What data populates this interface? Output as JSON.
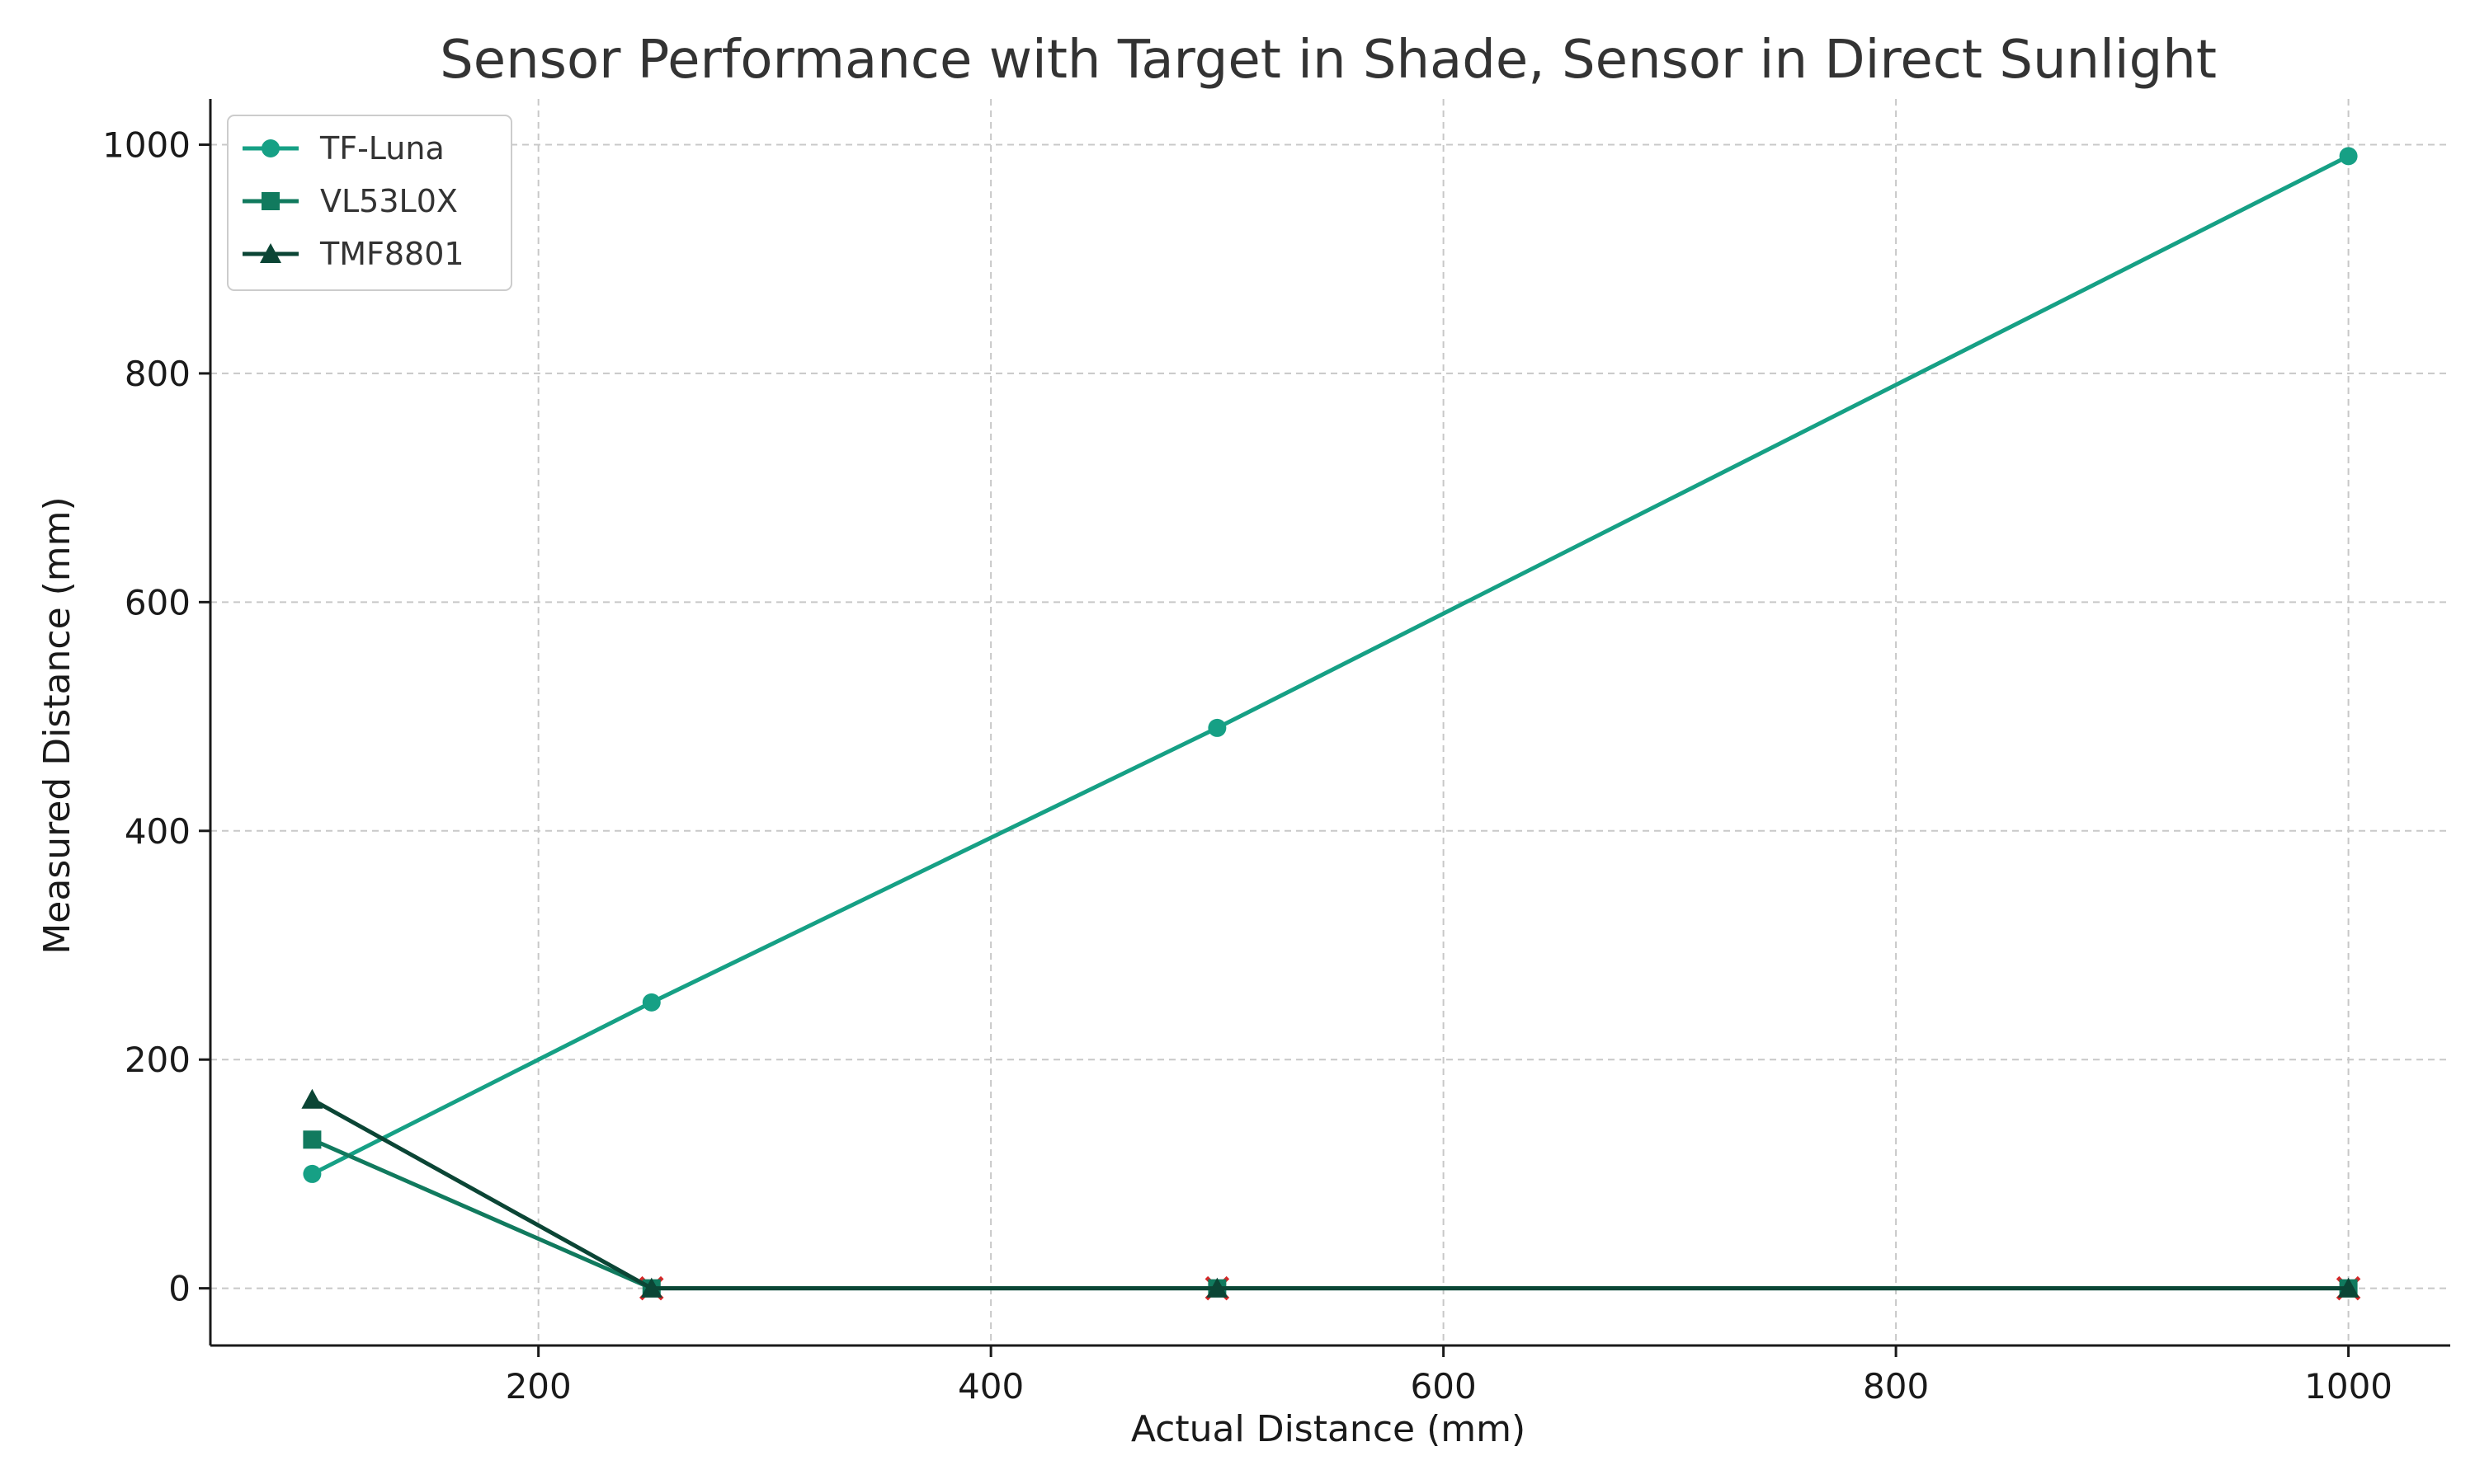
{
  "chart_data": {
    "type": "line",
    "title": "Sensor Performance with Target in Shade, Sensor in Direct Sunlight",
    "xlabel": "Actual Distance (mm)",
    "ylabel": "Measured Distance (mm)",
    "xlim": [
      55,
      1045
    ],
    "ylim": [
      -50,
      1040
    ],
    "xticks": [
      200,
      400,
      600,
      800,
      1000
    ],
    "yticks": [
      0,
      200,
      400,
      600,
      800,
      1000
    ],
    "grid": true,
    "legend_position": "top-left",
    "x": [
      100,
      250,
      500,
      1000
    ],
    "series": [
      {
        "name": "TF-Luna",
        "marker": "circle",
        "color": "#16a085",
        "values": [
          100,
          250,
          490,
          990
        ]
      },
      {
        "name": "VL53L0X",
        "marker": "square",
        "color": "#117a5e",
        "values": [
          130,
          0,
          0,
          0
        ]
      },
      {
        "name": "TMF8801",
        "marker": "triangle",
        "color": "#0b4535",
        "values": [
          165,
          0,
          0,
          0
        ]
      }
    ],
    "failure_markers": {
      "marker": "x",
      "color": "#d62728",
      "x": [
        250,
        500,
        1000
      ],
      "y": [
        0,
        0,
        0
      ]
    }
  }
}
